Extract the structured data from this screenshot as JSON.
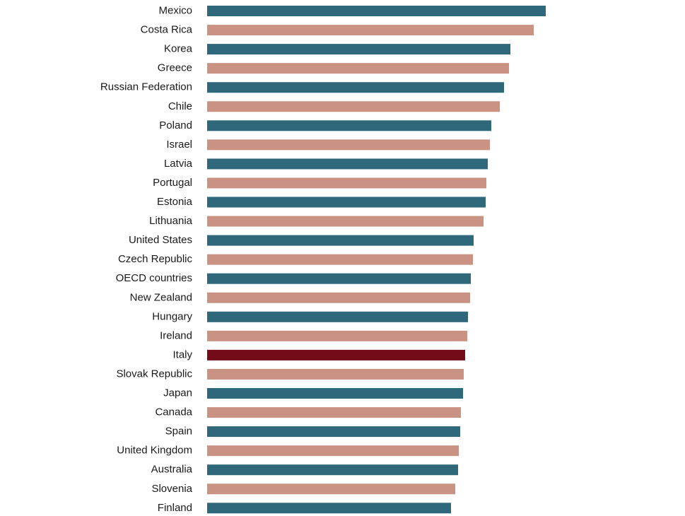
{
  "chart_data": {
    "type": "bar",
    "orientation": "horizontal",
    "title": "",
    "xlabel": "",
    "ylabel": "",
    "value_note": "relative bar lengths (no axis shown)",
    "xlim": [
      0,
      479
    ],
    "grid": false,
    "colors": {
      "odd": "#2f687b",
      "even": "#c99283",
      "highlight": "#730c18"
    },
    "highlight": "Italy",
    "categories": [
      "Mexico",
      "Costa Rica",
      "Korea",
      "Greece",
      "Russian Federation",
      "Chile",
      "Poland",
      "Israel",
      "Latvia",
      "Portugal",
      "Estonia",
      "Lithuania",
      "United States",
      "Czech Republic",
      "OECD countries",
      "New Zealand",
      "Hungary",
      "Ireland",
      "Italy",
      "Slovak Republic",
      "Japan",
      "Canada",
      "Spain",
      "United Kingdom",
      "Australia",
      "Slovenia",
      "Finland"
    ],
    "values": [
      479,
      462,
      429,
      427,
      420,
      414,
      402,
      400,
      397,
      395,
      394,
      391,
      377,
      376,
      373,
      372,
      369,
      368,
      365,
      363,
      362,
      359,
      358,
      356,
      355,
      351,
      345
    ]
  }
}
